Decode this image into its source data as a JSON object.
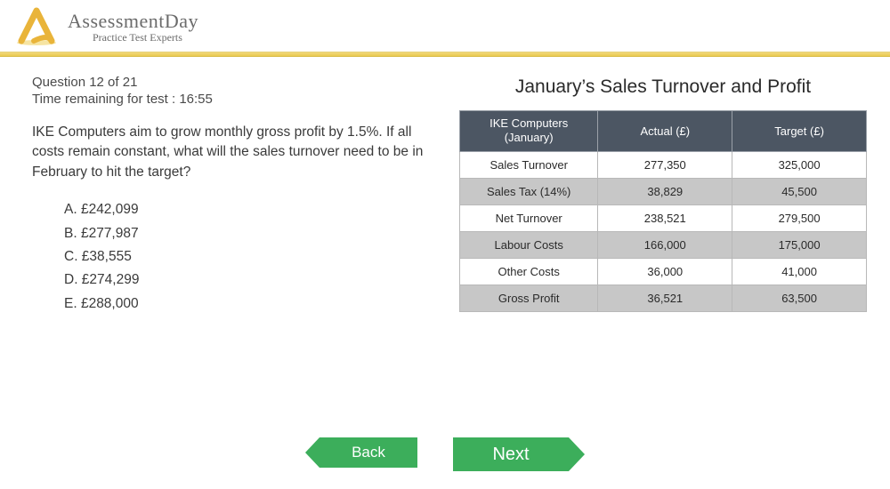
{
  "brand": {
    "name": "AssessmentDay",
    "tagline": "Practice Test Experts",
    "logo_colors": {
      "stroke": "#e9b43a",
      "shadow": "#f2d87a"
    }
  },
  "divider": {
    "gradient_top": "#f2d87a",
    "gradient_bottom": "#e9c94f"
  },
  "question": {
    "counter": "Question 12 of 21",
    "timer": "Time remaining for test : 16:55",
    "text": "IKE Computers aim to grow monthly gross profit by 1.5%. If all costs remain constant, what will the sales turnover need to be in February to hit the target?",
    "options": [
      {
        "letter": "A.",
        "label": "£242,099"
      },
      {
        "letter": "B.",
        "label": "£277,987"
      },
      {
        "letter": "C.",
        "label": "£38,555"
      },
      {
        "letter": "D.",
        "label": "£274,299"
      },
      {
        "letter": "E.",
        "label": "£288,000"
      }
    ]
  },
  "chart": {
    "title": "January’s Sales Turnover and Profit"
  },
  "table": {
    "type": "table",
    "header_bg": "#4c5663",
    "header_fg": "#ffffff",
    "shade_bg": "#c7c7c7",
    "plain_bg": "#ffffff",
    "border_color": "#b8b8b8",
    "font_size": 13,
    "columns": [
      {
        "label_line1": "IKE Computers",
        "label_line2": "(January)",
        "width": "34%"
      },
      {
        "label": "Actual (£)",
        "width": "33%"
      },
      {
        "label": "Target (£)",
        "width": "33%"
      }
    ],
    "rows": [
      {
        "label": "Sales Turnover",
        "actual": "277,350",
        "target": "325,000",
        "shade": false
      },
      {
        "label": "Sales Tax (14%)",
        "actual": "38,829",
        "target": "45,500",
        "shade": true
      },
      {
        "label": "Net Turnover",
        "actual": "238,521",
        "target": "279,500",
        "shade": false
      },
      {
        "label": "Labour Costs",
        "actual": "166,000",
        "target": "175,000",
        "shade": true
      },
      {
        "label": "Other Costs",
        "actual": "36,000",
        "target": "41,000",
        "shade": false
      },
      {
        "label": "Gross Profit",
        "actual": "36,521",
        "target": "63,500",
        "shade": true
      }
    ]
  },
  "nav": {
    "back_label": "Back",
    "next_label": "Next",
    "button_bg": "#3cae5b",
    "button_fg": "#ffffff"
  }
}
